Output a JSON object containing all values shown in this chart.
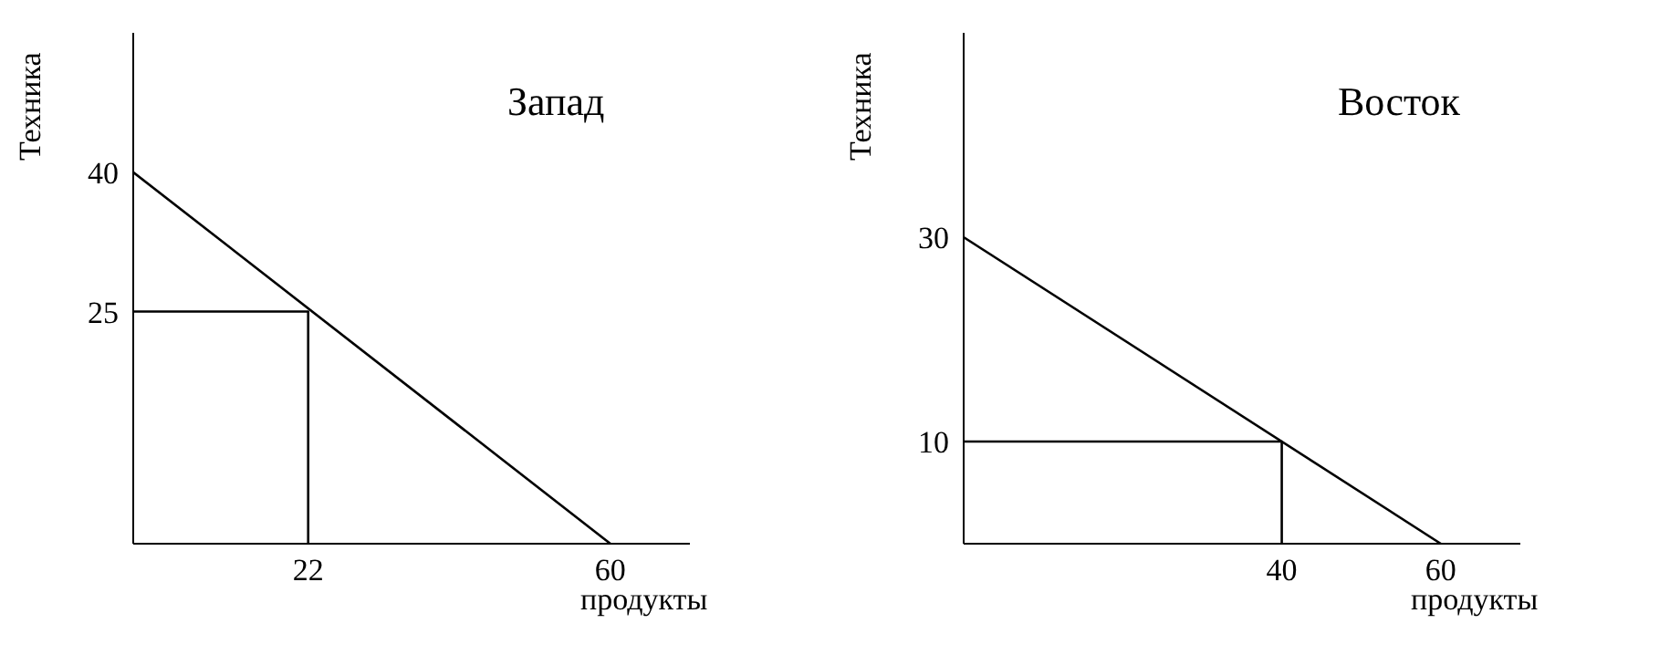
{
  "chart_data": [
    {
      "type": "line",
      "title": "Запад",
      "xlabel": "продукты",
      "ylabel": "Техника",
      "xlim": [
        0,
        70
      ],
      "ylim": [
        0,
        55
      ],
      "xticks": [
        22,
        60
      ],
      "yticks": [
        25,
        40
      ],
      "marker": "none",
      "line_style": "solid",
      "series": [
        {
          "color": "#000000",
          "x": [
            0,
            60
          ],
          "values": [
            40,
            0
          ]
        },
        {
          "color": "#000000",
          "x": [
            0,
            22,
            22
          ],
          "values": [
            25,
            25,
            0
          ]
        }
      ]
    },
    {
      "type": "line",
      "title": "Восток",
      "xlabel": "продукты",
      "ylabel": "Техника",
      "xlim": [
        0,
        70
      ],
      "ylim": [
        0,
        50
      ],
      "xticks": [
        40,
        60
      ],
      "yticks": [
        10,
        30
      ],
      "marker": "none",
      "line_style": "solid",
      "series": [
        {
          "color": "#000000",
          "x": [
            0,
            60
          ],
          "values": [
            30,
            0
          ]
        },
        {
          "color": "#000000",
          "x": [
            0,
            40,
            40
          ],
          "values": [
            10,
            10,
            0
          ]
        }
      ]
    }
  ]
}
